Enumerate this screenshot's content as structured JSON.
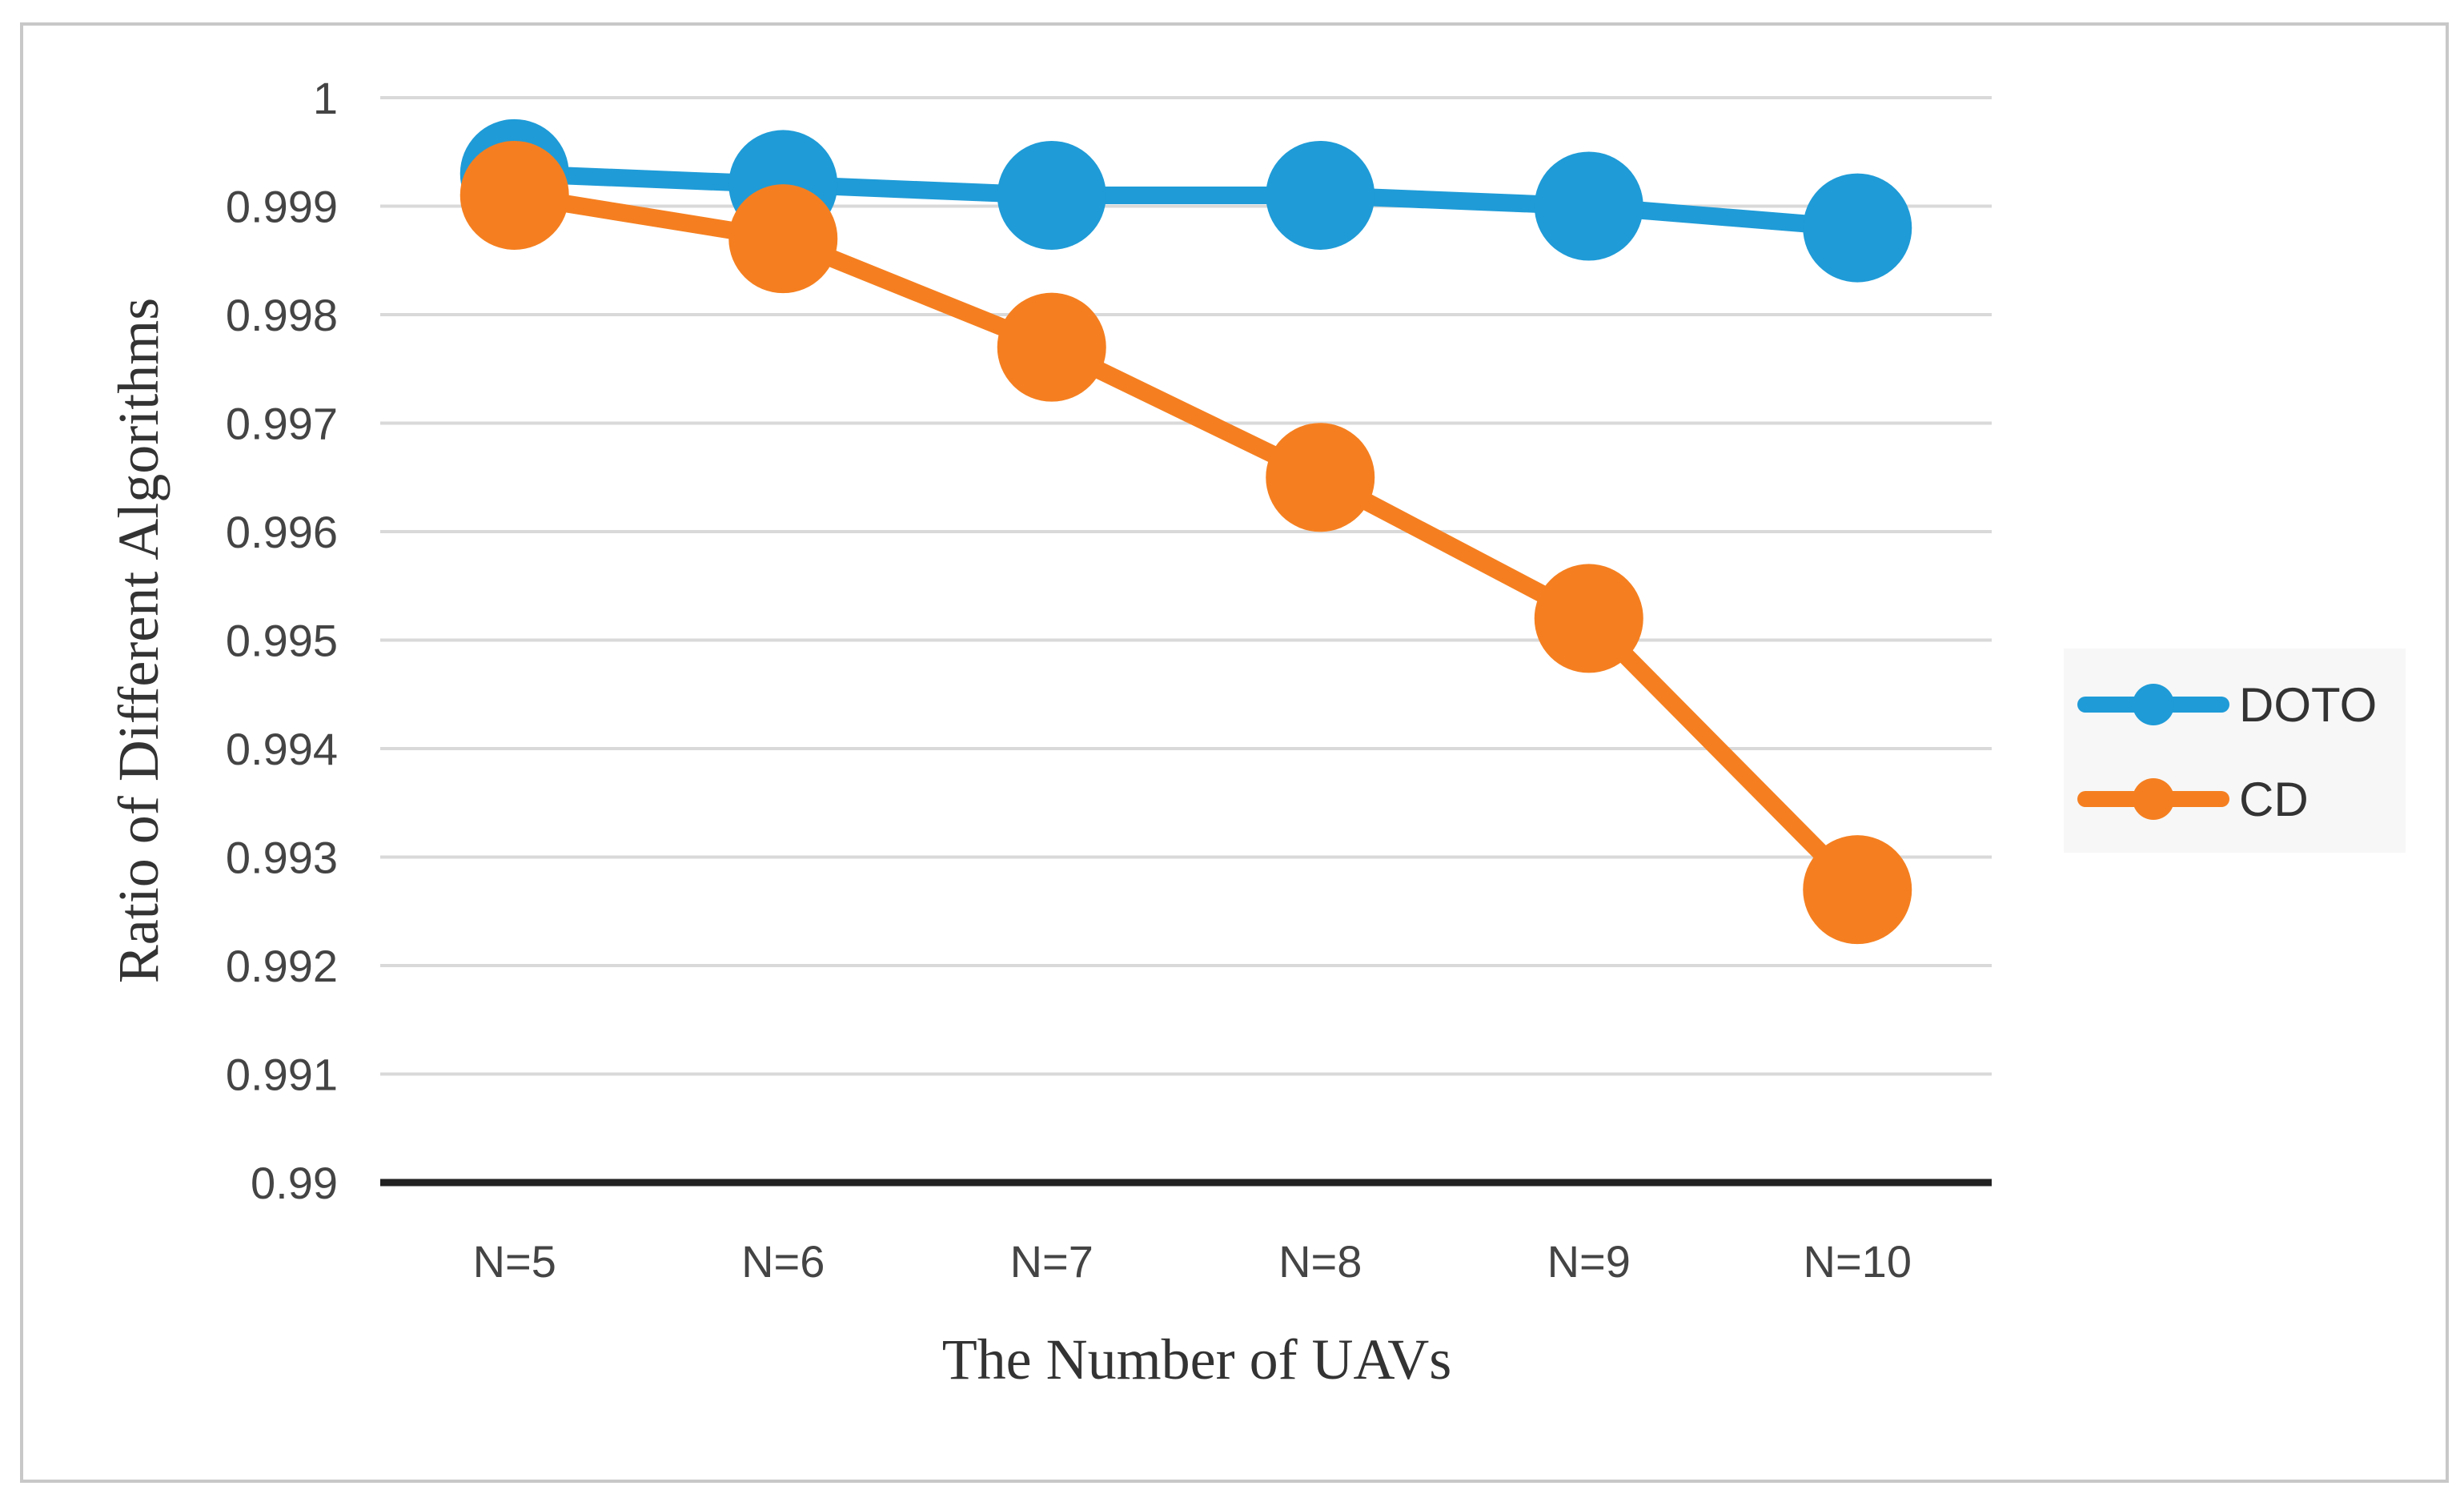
{
  "chart_data": {
    "type": "line",
    "title": "",
    "xlabel": "The Number of UAVs",
    "ylabel": "Ratio of  Different Algorithms",
    "categories": [
      "N=5",
      "N=6",
      "N=7",
      "N=8",
      "N=9",
      "N=10"
    ],
    "ylim": [
      0.99,
      1
    ],
    "yticks": [
      0.99,
      0.991,
      0.992,
      0.993,
      0.994,
      0.995,
      0.996,
      0.997,
      0.998,
      0.999,
      1
    ],
    "ytick_labels": [
      "0.99",
      "0.991",
      "0.992",
      "0.993",
      "0.994",
      "0.995",
      "0.996",
      "0.997",
      "0.998",
      "0.999",
      "1"
    ],
    "grid": true,
    "legend_position": "right",
    "series": [
      {
        "name": "DOTO",
        "color": "#1F9BD7",
        "values": [
          0.9993,
          0.9992,
          0.9991,
          0.9991,
          0.999,
          0.9988
        ]
      },
      {
        "name": "CD",
        "color": "#F57F20",
        "values": [
          0.9991,
          0.9987,
          0.9977,
          0.9965,
          0.9952,
          0.9927
        ]
      }
    ]
  }
}
